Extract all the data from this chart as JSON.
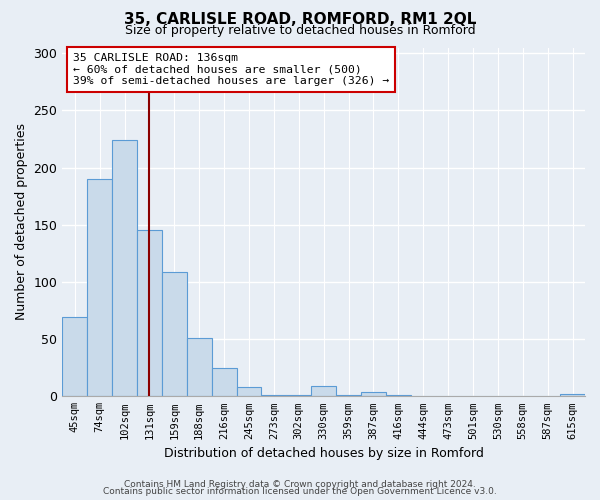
{
  "title": "35, CARLISLE ROAD, ROMFORD, RM1 2QL",
  "subtitle": "Size of property relative to detached houses in Romford",
  "xlabel": "Distribution of detached houses by size in Romford",
  "ylabel": "Number of detached properties",
  "bar_color": "#c9daea",
  "bar_edge_color": "#5b9bd5",
  "plot_bg_color": "#e8eef5",
  "fig_bg_color": "#e8eef5",
  "grid_color": "#ffffff",
  "categories": [
    "45sqm",
    "74sqm",
    "102sqm",
    "131sqm",
    "159sqm",
    "188sqm",
    "216sqm",
    "245sqm",
    "273sqm",
    "302sqm",
    "330sqm",
    "359sqm",
    "387sqm",
    "416sqm",
    "444sqm",
    "473sqm",
    "501sqm",
    "530sqm",
    "558sqm",
    "587sqm",
    "615sqm"
  ],
  "values": [
    69,
    190,
    224,
    145,
    109,
    51,
    25,
    8,
    1,
    1,
    9,
    1,
    4,
    1,
    0,
    0,
    0,
    0,
    0,
    0,
    2
  ],
  "vline_index": 3,
  "vline_color": "#8b0000",
  "annotation_line1": "35 CARLISLE ROAD: 136sqm",
  "annotation_line2": "← 60% of detached houses are smaller (500)",
  "annotation_line3": "39% of semi-detached houses are larger (326) →",
  "annotation_box_facecolor": "#ffffff",
  "annotation_box_edgecolor": "#cc0000",
  "ylim": [
    0,
    305
  ],
  "yticks": [
    0,
    50,
    100,
    150,
    200,
    250,
    300
  ],
  "footer1": "Contains HM Land Registry data © Crown copyright and database right 2024.",
  "footer2": "Contains public sector information licensed under the Open Government Licence v3.0."
}
